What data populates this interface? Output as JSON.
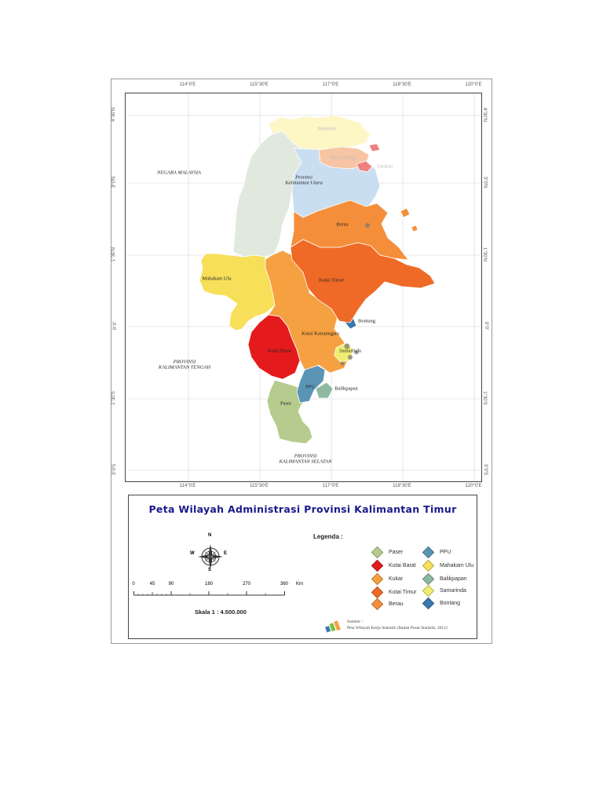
{
  "map": {
    "grid_labels": {
      "longitude_top": [
        "114°0'E",
        "115°30'E",
        "117°0'E",
        "118°30'E",
        "120°0'E"
      ],
      "longitude_bottom": [
        "114°0'E",
        "115°30'E",
        "117°0'E",
        "118°30'E",
        "120°0'E"
      ],
      "latitude_left": [
        "4°30'N",
        "3°0'N",
        "1°30'N",
        "0°0'",
        "1°30'S",
        "3°0'S"
      ],
      "latitude_right": [
        "4°30'N",
        "3°0'N",
        "1°30'N",
        "0°0'",
        "1°30'S",
        "3°0'S"
      ]
    },
    "neighbors": {
      "malaysia": "NEGARA MALAYSIA",
      "kaltara_line1": "Provinsi",
      "kaltara_line2": "Kalimantan Utara",
      "kalteng_line1": "PROVINSI",
      "kalteng_line2": "KALIMANTAN TENGAH",
      "kalsel_line1": "PROVINSI",
      "kalsel_line2": "KALIMANTAN SELATAN"
    },
    "kaltara_places": {
      "nunukan": "Nunukan",
      "tana_tidung": "Tana Tidung",
      "tarakan": "Tarakan"
    },
    "regions": {
      "berau": "Berau",
      "kutai_timur": "Kutai Timur",
      "mahakam_ulu": "Mahakam Ulu",
      "bontang": "Bontang",
      "kutai_kartanegara": "Kutai Kartanegara",
      "kutai_barat": "Kutai Barat",
      "samarinda": "Samarinda",
      "ppu": "PPU",
      "balikpapan": "Balikpapan",
      "paser": "Paser"
    },
    "colors": {
      "paser": "#b5cc8e",
      "kutai_barat": "#e41a1c",
      "kukar": "#f5a142",
      "kutai_timur": "#ef6a26",
      "berau": "#f58e3a",
      "ppu": "#5b95b5",
      "mahakam_ulu": "#f7df5a",
      "balikpapan": "#8fb8a0",
      "samarinda": "#f0ee72",
      "bontang": "#3a78ad",
      "kaltara_nunukan": "#fdf6c5",
      "kaltara_malinau": "#e1e9df",
      "kaltara_bulungan": "#c9def0",
      "kaltara_tanatidung": "#f7c5a3",
      "kaltara_tarakan": "#ef8080"
    }
  },
  "legend_box": {
    "title": "Peta Wilayah Administrasi Provinsi Kalimantan Timur",
    "compass": {
      "n": "N",
      "s": "S",
      "e": "E",
      "w": "W"
    },
    "scale_ticks": [
      "0",
      "45",
      "90",
      "180",
      "270",
      "360"
    ],
    "scale_unit": "Km",
    "scale_text": "Skala 1 : 4.500.000",
    "legend_heading": "Legenda :",
    "legend_items": [
      {
        "label": "Paser",
        "color": "#b5cc8e"
      },
      {
        "label": "Kutai Barat",
        "color": "#e41a1c"
      },
      {
        "label": "Kukar",
        "color": "#f5a142"
      },
      {
        "label": "Kutai Timur",
        "color": "#ef6a26"
      },
      {
        "label": "Berau",
        "color": "#f58e3a"
      },
      {
        "label": "PPU",
        "color": "#5b95b5"
      },
      {
        "label": "Mahakam Ulu",
        "color": "#f7df5a"
      },
      {
        "label": "Balikpapan",
        "color": "#8fb8a0"
      },
      {
        "label": "Samarinda",
        "color": "#f0ee72"
      },
      {
        "label": "Bontang",
        "color": "#3a78ad"
      }
    ],
    "source_label": "Sumber :",
    "source_text": "Peta Wilayah Kerja Statistik (Badan Pusat Statistik, 2012)",
    "logo_icon": "bps-logo-icon"
  }
}
